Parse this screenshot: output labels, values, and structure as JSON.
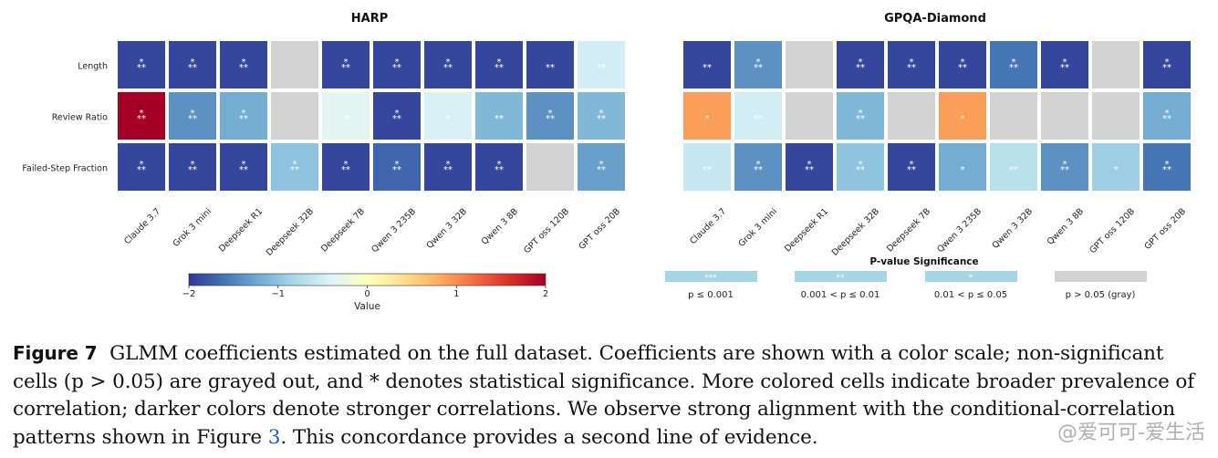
{
  "chart_data": [
    {
      "type": "heatmap",
      "title": "HARP",
      "rows": [
        "Length",
        "Review Ratio",
        "Failed-Step Fraction"
      ],
      "columns": [
        "Claude 3.7",
        "Grok 3 mini",
        "Deepseek R1",
        "Deepseek 32B",
        "Deepseek 7B",
        "Qwen 3 235B",
        "Qwen 3 32B",
        "Qwen 3 8B",
        "GPT oss 120B",
        "GPT oss 20B"
      ],
      "values": [
        [
          -1.9,
          -1.9,
          -1.9,
          null,
          -1.9,
          -1.9,
          -1.9,
          -1.9,
          -1.9,
          -0.5
        ],
        [
          2.0,
          -1.4,
          -1.2,
          null,
          -0.35,
          -1.9,
          -0.45,
          -1.1,
          -1.4,
          -1.1
        ],
        [
          -1.9,
          -1.9,
          -1.9,
          -1.0,
          -1.9,
          -1.7,
          -1.9,
          -1.9,
          null,
          -1.3
        ]
      ],
      "significance": [
        [
          "***",
          "***",
          "***",
          "",
          "***",
          "***",
          "***",
          "***",
          "**",
          "**"
        ],
        [
          "***",
          "***",
          "***",
          "",
          "*",
          "***",
          "*",
          "**",
          "***",
          "***"
        ],
        [
          "***",
          "***",
          "***",
          "***",
          "***",
          "***",
          "***",
          "***",
          "",
          "***"
        ]
      ]
    },
    {
      "type": "heatmap",
      "title": "GPQA-Diamond",
      "rows": [
        "Length",
        "Review Ratio",
        "Failed-Step Fraction"
      ],
      "columns": [
        "Claude 3.7",
        "Grok 3 mini",
        "Deepseek R1",
        "Deepseek 32B",
        "Deepseek 7B",
        "Qwen 3 235B",
        "Qwen 3 32B",
        "Qwen 3 8B",
        "GPT oss 120B",
        "GPT oss 20B"
      ],
      "values": [
        [
          -1.9,
          -1.4,
          null,
          -1.9,
          -1.9,
          -1.9,
          -1.6,
          -1.9,
          null,
          -1.9
        ],
        [
          0.9,
          -0.5,
          null,
          -1.1,
          null,
          0.9,
          null,
          null,
          null,
          -1.2
        ],
        [
          -0.6,
          -1.4,
          -1.9,
          -1.0,
          -1.9,
          -1.2,
          -0.7,
          -1.4,
          -0.9,
          -1.6
        ]
      ],
      "significance": [
        [
          "**",
          "***",
          "",
          "***",
          "***",
          "***",
          "***",
          "***",
          "",
          "***"
        ],
        [
          "*",
          "**",
          "",
          "***",
          "",
          "*",
          "",
          "",
          "",
          "***"
        ],
        [
          "**",
          "***",
          "***",
          "***",
          "***",
          "*",
          "**",
          "***",
          "*",
          "***"
        ]
      ]
    }
  ],
  "colorbar": {
    "label": "Value",
    "range": [
      -2,
      2
    ],
    "ticks": [
      "−2",
      "−1",
      "0",
      "1",
      "2"
    ],
    "tick_values": [
      -2,
      -1,
      0,
      1,
      2
    ],
    "colormap": "RdYlBu_r"
  },
  "pvalue_legend": {
    "title": "P-value Significance",
    "entries": [
      {
        "symbol": "***",
        "label": "p ≤ 0.001",
        "color": "#a6d5e6"
      },
      {
        "symbol": "**",
        "label": "0.001 < p ≤ 0.01",
        "color": "#a6d5e6"
      },
      {
        "symbol": "*",
        "label": "0.01 < p ≤ 0.05",
        "color": "#a6d5e6"
      },
      {
        "symbol": "",
        "label": "p > 0.05 (gray)",
        "color": "#d3d3d3"
      }
    ]
  },
  "non_significant_color": "#d3d3d3",
  "caption": {
    "label": "Figure 7",
    "text_before_ref": "GLMM coefficients estimated on the full dataset. Coefficients are shown with a color scale; non-significant cells (p > 0.05) are grayed out, and * denotes statistical significance. More colored cells indicate broader prevalence of correlation; darker colors denote stronger correlations. We observe strong alignment with the conditional-correlation patterns shown in Figure ",
    "ref": "3",
    "text_after_ref": ". This concordance provides a second line of evidence."
  },
  "watermark": "@爱可可-爱生活"
}
